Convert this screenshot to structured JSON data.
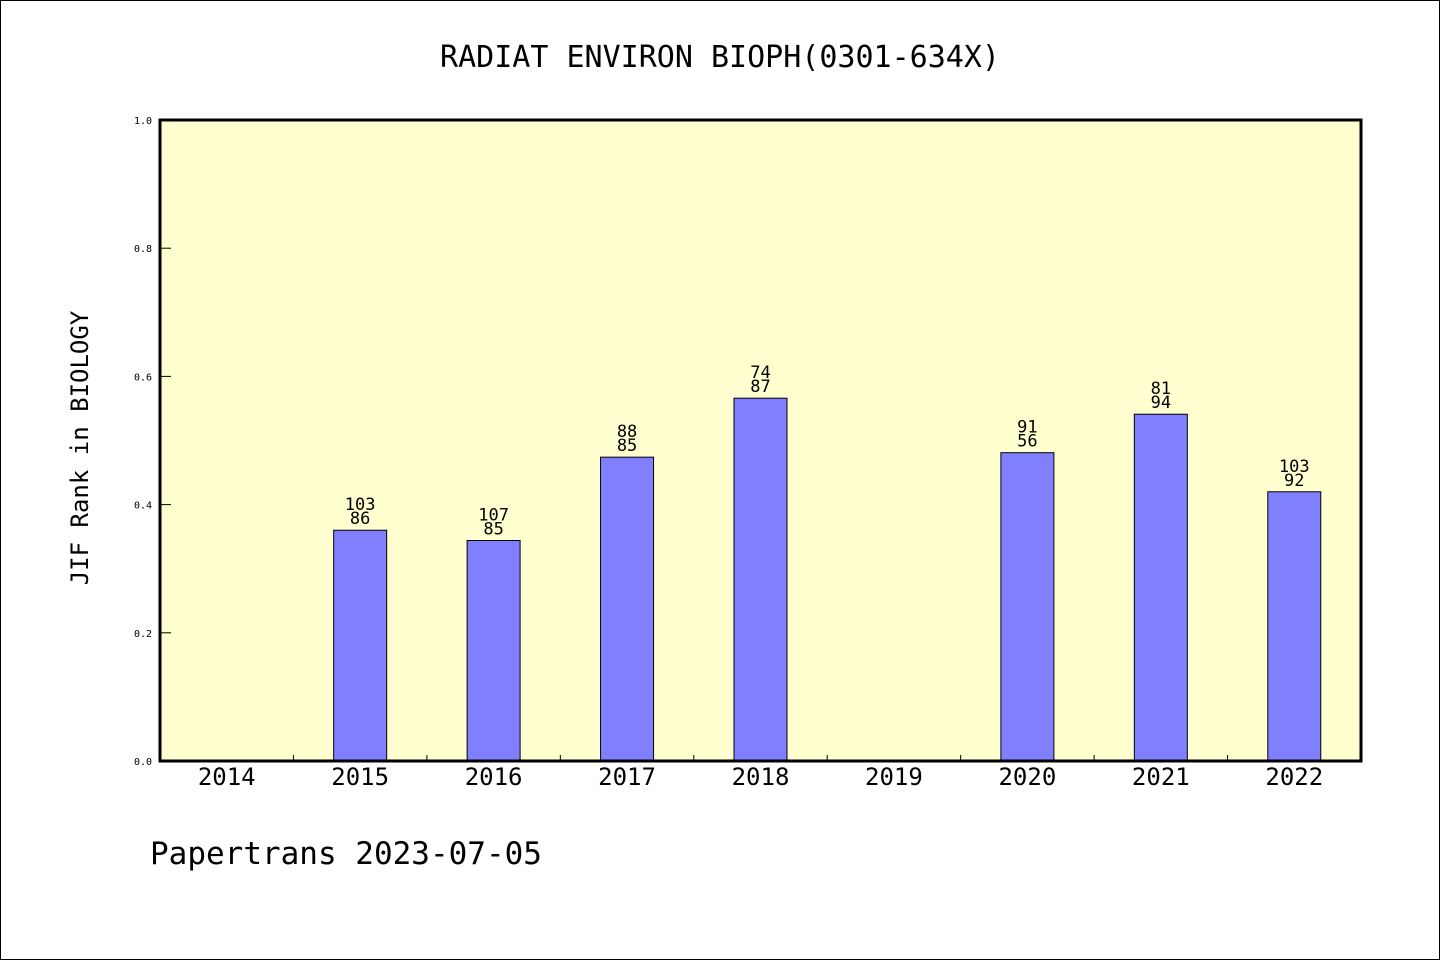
{
  "chart_data": {
    "type": "bar",
    "title": "RADIAT ENVIRON BIOPH(0301-634X)",
    "xlabel": "",
    "ylabel": "JIF Rank in BIOLOGY",
    "categories": [
      "2014",
      "2015",
      "2016",
      "2017",
      "2018",
      "2019",
      "2020",
      "2021",
      "2022"
    ],
    "values": [
      null,
      0.36,
      0.344,
      0.474,
      0.566,
      null,
      0.481,
      0.541,
      0.42
    ],
    "data_labels": [
      null,
      [
        "103",
        "86"
      ],
      [
        "107",
        "85"
      ],
      [
        "88",
        "85"
      ],
      [
        "74",
        "87"
      ],
      null,
      [
        "91",
        "56"
      ],
      [
        "81",
        "94"
      ],
      [
        "103",
        "92"
      ]
    ],
    "ylim": [
      0,
      1.0
    ],
    "yticks": [
      "0.0",
      "0.2",
      "0.4",
      "0.6",
      "0.8",
      "1.0"
    ],
    "grid": false,
    "colors": {
      "plot_background": "#ffffd0",
      "bar_fill": "#8080ff",
      "bar_stroke": "#000000"
    }
  },
  "footer": {
    "text": "Papertrans 2023-07-05"
  }
}
